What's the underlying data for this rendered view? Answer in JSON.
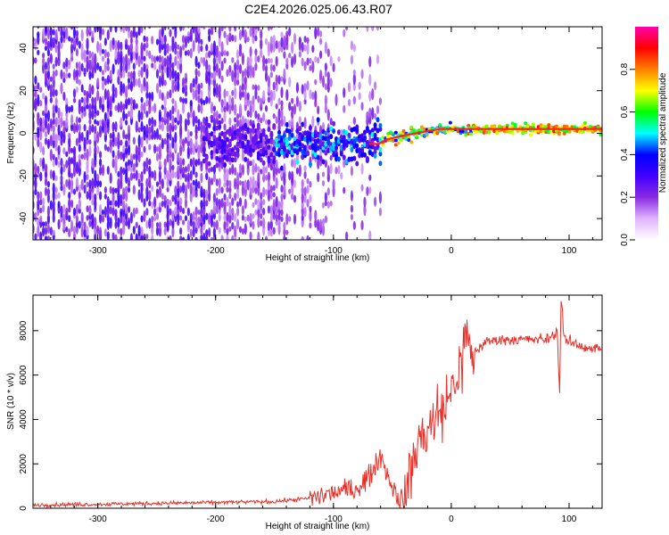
{
  "title": "C2E4.2026.025.06.43.R07",
  "chart_data": [
    {
      "type": "heatmap",
      "xlabel": "Height of straight line (km)",
      "ylabel": "Frequency (Hz)",
      "xlim": [
        -355,
        128
      ],
      "ylim": [
        -50,
        50
      ],
      "xticks": [
        -300,
        -200,
        -100,
        0,
        100
      ],
      "yticks": [
        -40,
        -20,
        0,
        20,
        40
      ],
      "ridge": {
        "x": [
          -70,
          -62,
          -55,
          -48,
          -40,
          -30,
          -20,
          -10,
          0,
          20,
          40,
          60,
          80,
          100,
          128
        ],
        "y": [
          -5,
          -5,
          -3,
          -2,
          -1,
          0,
          1,
          2,
          2,
          2,
          2,
          2,
          2,
          2,
          2
        ]
      },
      "colorbar": {
        "label": "Normalized spectral amplitude",
        "range": [
          0,
          1
        ],
        "ticks": [
          0.0,
          0.2,
          0.4,
          0.6,
          0.8
        ],
        "tick_labels": [
          "0.0",
          "0.2",
          "0.4",
          "0.6",
          "0.8"
        ],
        "stops": [
          "#ffffff",
          "#e0b3ff",
          "#8a2be2",
          "#4000ff",
          "#0000ff",
          "#00ffff",
          "#00ff00",
          "#ffff00",
          "#ff8000",
          "#ff0000",
          "#ff00aa"
        ]
      }
    },
    {
      "type": "line",
      "xlabel": "Height of straight line (km)",
      "ylabel": "SNR (10 * v/v)",
      "xlim": [
        -355,
        128
      ],
      "ylim": [
        0,
        9600
      ],
      "xticks": [
        -300,
        -200,
        -100,
        0,
        100
      ],
      "yticks": [
        0,
        2000,
        4000,
        6000,
        8000
      ],
      "color": "#e8302a",
      "series": [
        {
          "name": "SNR",
          "x": [
            -355,
            -300,
            -250,
            -200,
            -150,
            -120,
            -100,
            -90,
            -80,
            -70,
            -65,
            -60,
            -58,
            -55,
            -50,
            -45,
            -40,
            -35,
            -30,
            -25,
            -20,
            -15,
            -12,
            -10,
            -5,
            0,
            5,
            10,
            12,
            15,
            20,
            25,
            30,
            40,
            50,
            60,
            70,
            80,
            85,
            90,
            92,
            93,
            94,
            95,
            96,
            98,
            100,
            110,
            120,
            128
          ],
          "y": [
            150,
            180,
            220,
            260,
            300,
            450,
            700,
            800,
            900,
            1400,
            1900,
            2400,
            2200,
            1600,
            1000,
            500,
            200,
            1500,
            2700,
            3200,
            3600,
            3900,
            4100,
            4300,
            4600,
            5300,
            6000,
            6500,
            8200,
            7000,
            7000,
            7300,
            7500,
            7600,
            7600,
            7600,
            7600,
            7600,
            7700,
            8000,
            5000,
            9200,
            9500,
            8000,
            7800,
            7400,
            7500,
            7300,
            7200,
            7200
          ]
        }
      ]
    }
  ]
}
